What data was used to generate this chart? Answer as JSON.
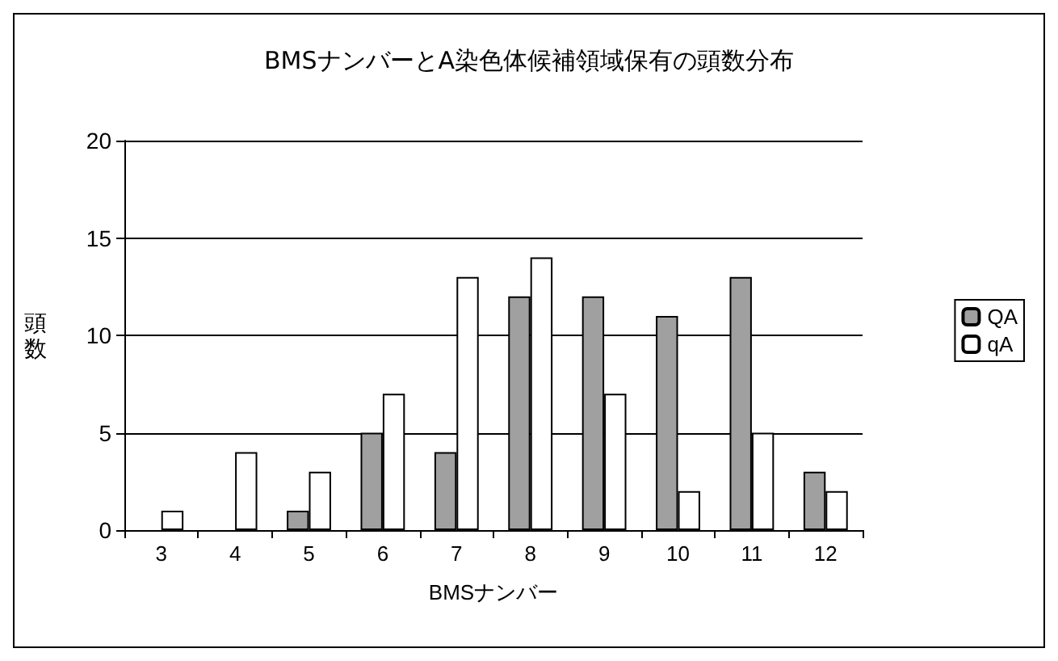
{
  "chart_data": {
    "type": "bar",
    "title": "BMSナンバーとA染色体候補領域保有の頭数分布",
    "xlabel": "BMSナンバー",
    "ylabel": "頭数",
    "categories": [
      "3",
      "4",
      "5",
      "6",
      "7",
      "8",
      "9",
      "10",
      "11",
      "12"
    ],
    "series": [
      {
        "name": "QA",
        "color": "#a0a0a0",
        "values": [
          0,
          0,
          1,
          5,
          4,
          12,
          12,
          11,
          13,
          3
        ]
      },
      {
        "name": "qA",
        "color": "#ffffff",
        "values": [
          1,
          4,
          3,
          7,
          13,
          14,
          7,
          2,
          5,
          2
        ]
      }
    ],
    "ylim": [
      0,
      20
    ],
    "yticks": [
      0,
      5,
      10,
      15,
      20
    ],
    "grid": "y",
    "legend": "right"
  }
}
